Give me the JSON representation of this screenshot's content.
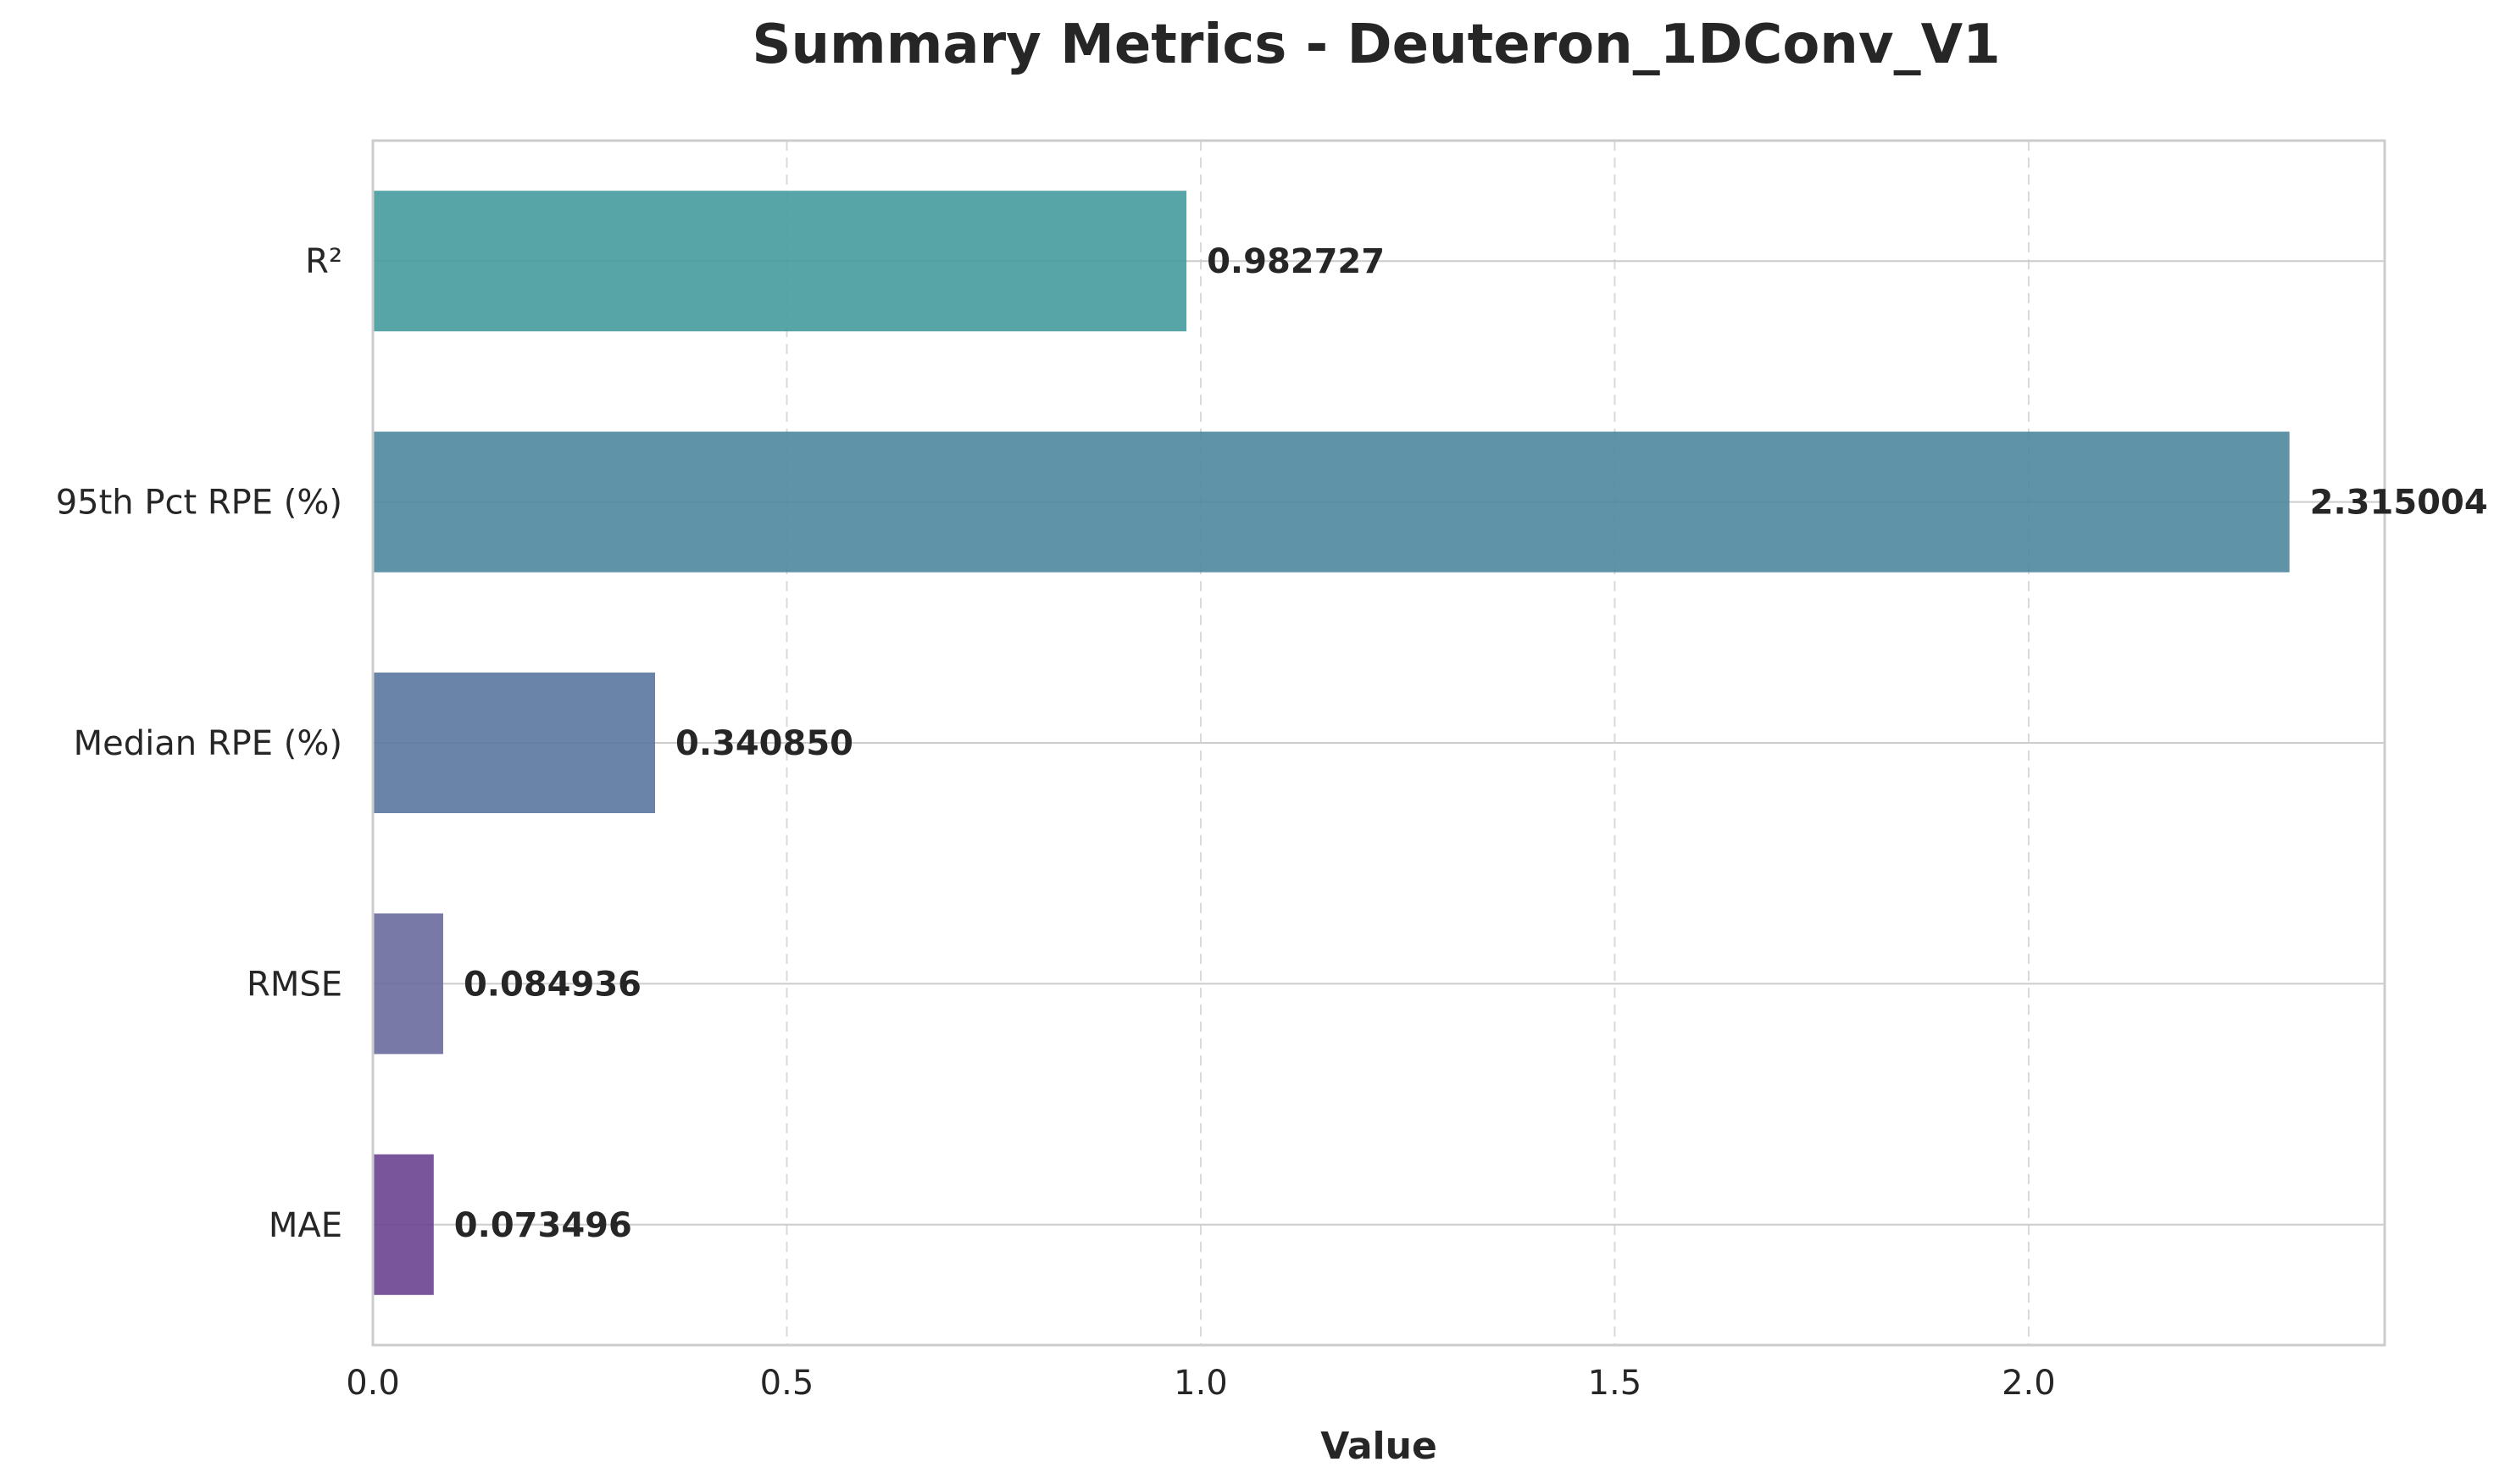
{
  "chart_data": {
    "type": "bar",
    "orientation": "horizontal",
    "title": "Summary Metrics - Deuteron_1DConv_V1",
    "xlabel": "Value",
    "ylabel": "",
    "xlim": [
      0,
      2.43
    ],
    "xticks": [
      0.0,
      0.5,
      1.0,
      1.5,
      2.0
    ],
    "xtick_labels": [
      "0.0",
      "0.5",
      "1.0",
      "1.5",
      "2.0"
    ],
    "grid": {
      "x": "dashed",
      "y": "solid"
    },
    "categories": [
      "MAE",
      "RMSE",
      "Median RPE (%)",
      "95th Pct RPE (%)",
      "R²"
    ],
    "values": [
      0.073496,
      0.084936,
      0.34085,
      2.315004,
      0.982727
    ],
    "value_labels": [
      "0.073496",
      "0.084936",
      "0.340850",
      "2.315004",
      "0.982727"
    ],
    "colors": [
      "#6a4391",
      "#6a6a9e",
      "#5a76a0",
      "#4e879e",
      "#459b9d"
    ]
  }
}
